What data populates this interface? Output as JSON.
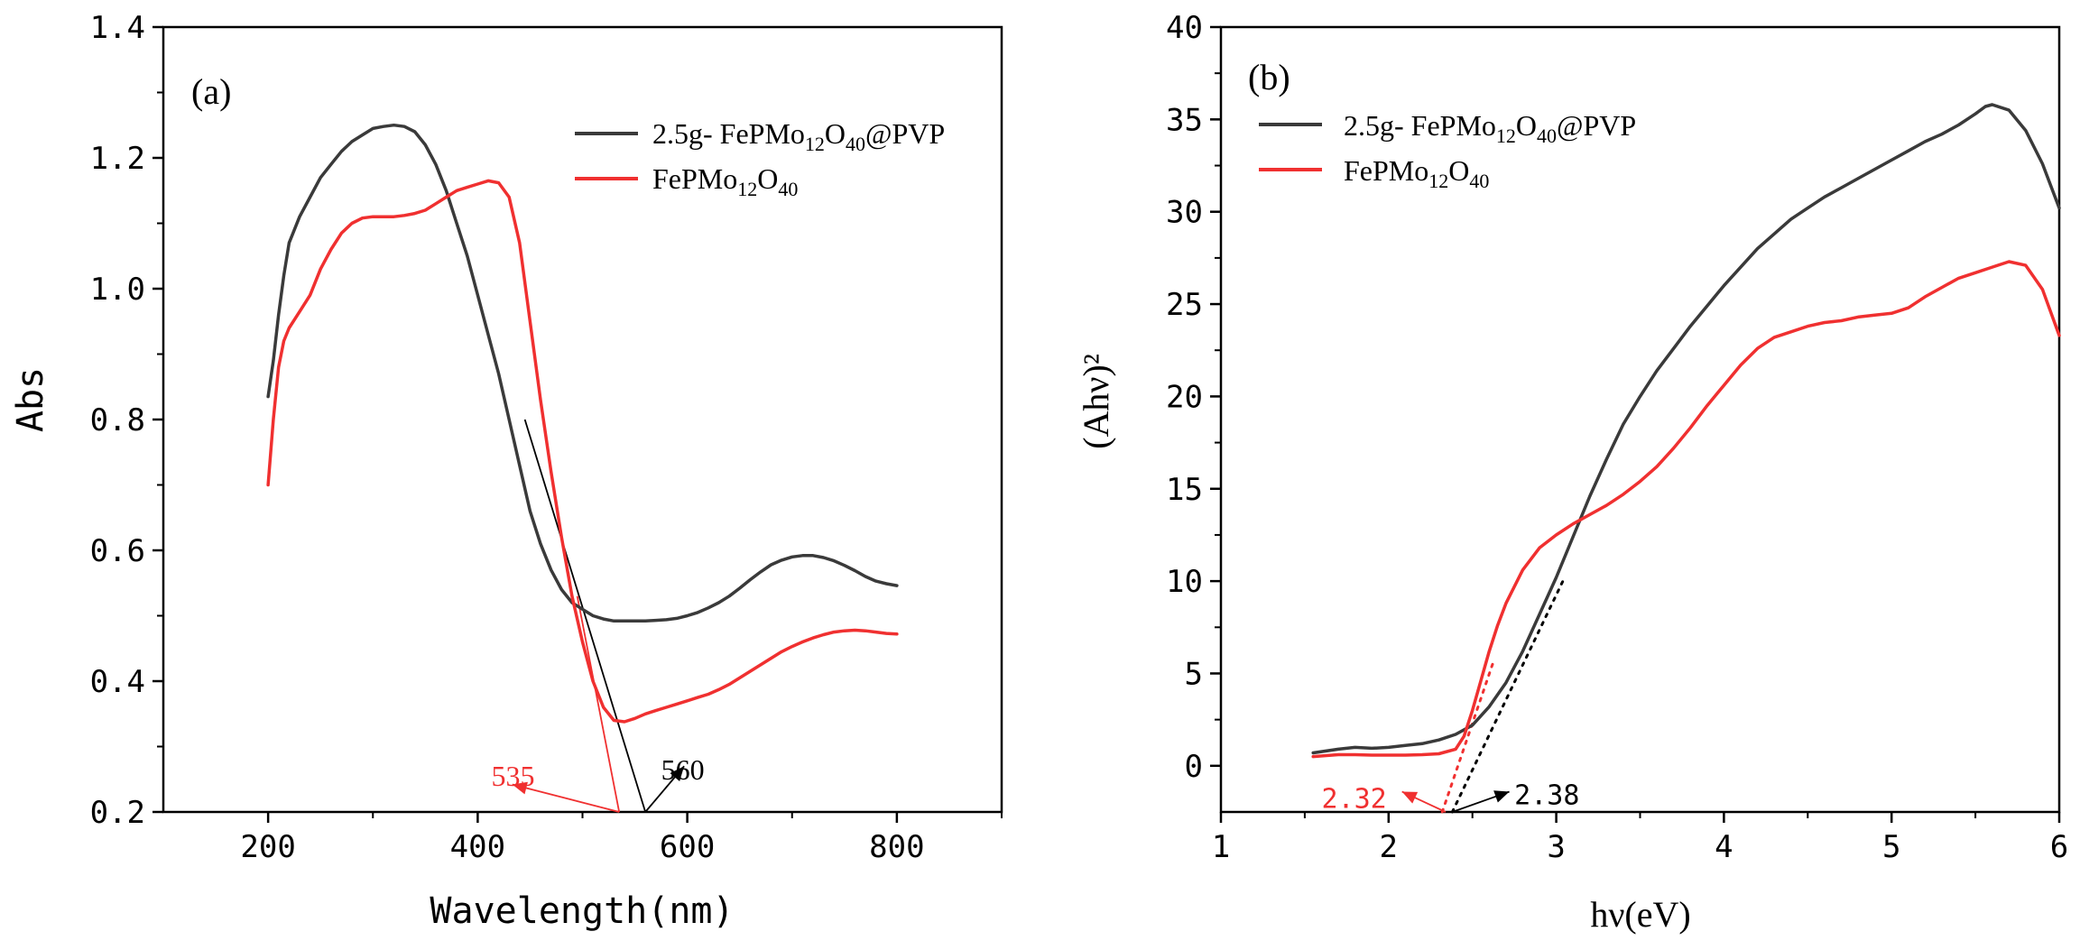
{
  "chart_data": [
    {
      "type": "line",
      "panel_label": "(a)",
      "xlabel": "Wavelength(nm)",
      "ylabel": "Abs",
      "xlim": [
        100,
        900
      ],
      "ylim": [
        0.2,
        1.4
      ],
      "x_ticks": [
        200,
        400,
        600,
        800
      ],
      "y_ticks": [
        0.2,
        0.4,
        0.6,
        0.8,
        1.0,
        1.2,
        1.4
      ],
      "x_tick_labels": [
        "200",
        "400",
        "600",
        "800"
      ],
      "y_tick_labels": [
        "0.2",
        "0.4",
        "0.6",
        "0.8",
        "1.0",
        "1.2",
        "1.4"
      ],
      "legend_position": "top-right",
      "series": [
        {
          "name": "2.5g- FePMo12O40@PVP",
          "legend": {
            "base": "2.5g- FePMo",
            "sub1": "12",
            "mid": "O",
            "sub2": "40",
            "tail": "@PVP"
          },
          "color": "#3a3a3a",
          "x": [
            200,
            205,
            210,
            215,
            220,
            230,
            240,
            250,
            260,
            270,
            280,
            290,
            300,
            310,
            320,
            330,
            340,
            350,
            360,
            370,
            380,
            390,
            400,
            410,
            420,
            430,
            440,
            450,
            460,
            470,
            480,
            490,
            500,
            510,
            520,
            530,
            540,
            550,
            560,
            570,
            580,
            590,
            600,
            610,
            620,
            630,
            640,
            650,
            660,
            670,
            680,
            690,
            700,
            710,
            720,
            730,
            740,
            750,
            760,
            770,
            780,
            790,
            800
          ],
          "values": [
            0.835,
            0.89,
            0.96,
            1.02,
            1.07,
            1.11,
            1.14,
            1.17,
            1.19,
            1.21,
            1.225,
            1.235,
            1.245,
            1.248,
            1.25,
            1.248,
            1.24,
            1.22,
            1.19,
            1.15,
            1.1,
            1.05,
            0.99,
            0.93,
            0.87,
            0.8,
            0.73,
            0.66,
            0.61,
            0.57,
            0.54,
            0.52,
            0.51,
            0.5,
            0.495,
            0.492,
            0.492,
            0.492,
            0.492,
            0.493,
            0.494,
            0.496,
            0.5,
            0.505,
            0.512,
            0.52,
            0.53,
            0.542,
            0.555,
            0.567,
            0.578,
            0.585,
            0.59,
            0.592,
            0.592,
            0.589,
            0.584,
            0.577,
            0.569,
            0.56,
            0.553,
            0.549,
            0.546
          ]
        },
        {
          "name": "FePMo12O40",
          "legend": {
            "base": "FePMo",
            "sub1": "12",
            "mid": "O",
            "sub2": "40",
            "tail": ""
          },
          "color": "#f03030",
          "x": [
            200,
            205,
            210,
            215,
            220,
            230,
            240,
            250,
            260,
            270,
            280,
            290,
            300,
            310,
            320,
            330,
            340,
            350,
            360,
            370,
            380,
            390,
            400,
            410,
            420,
            430,
            440,
            450,
            460,
            470,
            480,
            490,
            500,
            510,
            520,
            530,
            540,
            550,
            560,
            570,
            580,
            590,
            600,
            610,
            620,
            630,
            640,
            650,
            660,
            670,
            680,
            690,
            700,
            710,
            720,
            730,
            740,
            750,
            760,
            770,
            780,
            790,
            800
          ],
          "values": [
            0.7,
            0.8,
            0.88,
            0.92,
            0.94,
            0.965,
            0.99,
            1.03,
            1.06,
            1.085,
            1.1,
            1.108,
            1.11,
            1.11,
            1.11,
            1.112,
            1.115,
            1.12,
            1.13,
            1.14,
            1.15,
            1.155,
            1.16,
            1.165,
            1.162,
            1.14,
            1.07,
            0.95,
            0.83,
            0.72,
            0.62,
            0.53,
            0.46,
            0.4,
            0.36,
            0.34,
            0.338,
            0.343,
            0.35,
            0.355,
            0.36,
            0.365,
            0.37,
            0.375,
            0.38,
            0.387,
            0.395,
            0.405,
            0.415,
            0.425,
            0.435,
            0.445,
            0.453,
            0.46,
            0.466,
            0.471,
            0.475,
            0.477,
            0.478,
            0.477,
            0.475,
            0.473,
            0.472
          ]
        }
      ],
      "tangent_lines": [
        {
          "color": "#000000",
          "x": [
            445,
            560
          ],
          "y": [
            0.8,
            0.2
          ]
        },
        {
          "color": "#f03030",
          "x": [
            495,
            535
          ],
          "y": [
            0.53,
            0.2
          ]
        }
      ],
      "annotations": [
        {
          "text": "535",
          "color": "#f03030",
          "at_x": 535,
          "label_x": 413,
          "label_y": 0.255,
          "arrow_to_x": 433,
          "arrow_to_y": 0.242
        },
        {
          "text": "560",
          "color": "#000000",
          "at_x": 560,
          "label_x": 575,
          "label_y": 0.265,
          "arrow_to_x": 597,
          "arrow_to_y": 0.27
        }
      ]
    },
    {
      "type": "line",
      "panel_label": "(b)",
      "xlabel": "hν(eV)",
      "ylabel": "(Ahν)²",
      "xlim": [
        1,
        6
      ],
      "ylim": [
        -2.5,
        40
      ],
      "x_ticks": [
        1,
        2,
        3,
        4,
        5,
        6
      ],
      "y_ticks": [
        0,
        5,
        10,
        15,
        20,
        25,
        30,
        35,
        40
      ],
      "x_tick_labels": [
        "1",
        "2",
        "3",
        "4",
        "5",
        "6"
      ],
      "y_tick_labels": [
        "0",
        "5",
        "10",
        "15",
        "20",
        "25",
        "30",
        "35",
        "40"
      ],
      "legend_position": "top-left",
      "series": [
        {
          "name": "2.5g- FePMo12O40@PVP",
          "legend": {
            "base": "2.5g- FePMo",
            "sub1": "12",
            "mid": "O",
            "sub2": "40",
            "tail": "@PVP"
          },
          "color": "#3a3a3a",
          "x": [
            1.55,
            1.7,
            1.8,
            1.9,
            2.0,
            2.1,
            2.2,
            2.3,
            2.4,
            2.5,
            2.6,
            2.7,
            2.8,
            2.9,
            3.0,
            3.1,
            3.2,
            3.3,
            3.4,
            3.5,
            3.6,
            3.7,
            3.8,
            3.9,
            4.0,
            4.1,
            4.2,
            4.3,
            4.4,
            4.5,
            4.6,
            4.7,
            4.8,
            4.9,
            5.0,
            5.1,
            5.2,
            5.3,
            5.4,
            5.5,
            5.56,
            5.6,
            5.7,
            5.8,
            5.9,
            6.0
          ],
          "values": [
            0.7,
            0.9,
            1.0,
            0.95,
            1.0,
            1.1,
            1.2,
            1.4,
            1.7,
            2.2,
            3.2,
            4.5,
            6.2,
            8.2,
            10.2,
            12.4,
            14.6,
            16.6,
            18.5,
            20.0,
            21.4,
            22.6,
            23.8,
            24.9,
            26.0,
            27.0,
            28.0,
            28.8,
            29.6,
            30.2,
            30.8,
            31.3,
            31.8,
            32.3,
            32.8,
            33.3,
            33.8,
            34.2,
            34.7,
            35.3,
            35.7,
            35.8,
            35.5,
            34.4,
            32.6,
            30.2
          ]
        },
        {
          "name": "FePMo12O40",
          "legend": {
            "base": "FePMo",
            "sub1": "12",
            "mid": "O",
            "sub2": "40",
            "tail": ""
          },
          "color": "#f03030",
          "x": [
            1.55,
            1.7,
            1.8,
            1.9,
            2.0,
            2.1,
            2.2,
            2.3,
            2.4,
            2.45,
            2.5,
            2.55,
            2.6,
            2.65,
            2.7,
            2.8,
            2.9,
            3.0,
            3.1,
            3.2,
            3.3,
            3.4,
            3.5,
            3.6,
            3.7,
            3.8,
            3.9,
            4.0,
            4.1,
            4.2,
            4.3,
            4.4,
            4.5,
            4.6,
            4.7,
            4.8,
            4.9,
            5.0,
            5.1,
            5.2,
            5.3,
            5.4,
            5.5,
            5.6,
            5.7,
            5.8,
            5.9,
            6.0
          ],
          "values": [
            0.5,
            0.6,
            0.6,
            0.58,
            0.58,
            0.58,
            0.6,
            0.65,
            0.9,
            1.6,
            3.0,
            4.6,
            6.2,
            7.6,
            8.8,
            10.6,
            11.8,
            12.5,
            13.1,
            13.6,
            14.1,
            14.7,
            15.4,
            16.2,
            17.2,
            18.3,
            19.5,
            20.6,
            21.7,
            22.6,
            23.2,
            23.5,
            23.8,
            24.0,
            24.1,
            24.3,
            24.4,
            24.5,
            24.8,
            25.4,
            25.9,
            26.4,
            26.7,
            27.0,
            27.3,
            27.1,
            25.8,
            23.3
          ]
        }
      ],
      "tangent_lines": [
        {
          "color": "#000000",
          "dashed": true,
          "x": [
            2.38,
            3.05
          ],
          "y": [
            -2.5,
            10.2
          ]
        },
        {
          "color": "#f03030",
          "dashed": true,
          "x": [
            2.32,
            2.62
          ],
          "y": [
            -2.5,
            5.5
          ]
        }
      ],
      "annotations": [
        {
          "text": "2.32",
          "color": "#f03030",
          "at_x": 2.34,
          "label_x": 1.6,
          "label_y": -1.75,
          "arrow_to_x": 2.08,
          "arrow_to_y": -1.4
        },
        {
          "text": "2.38",
          "color": "#000000",
          "at_x": 2.38,
          "label_x": 2.75,
          "label_y": -1.55,
          "arrow_to_x": 2.72,
          "arrow_to_y": -1.4
        }
      ]
    }
  ]
}
